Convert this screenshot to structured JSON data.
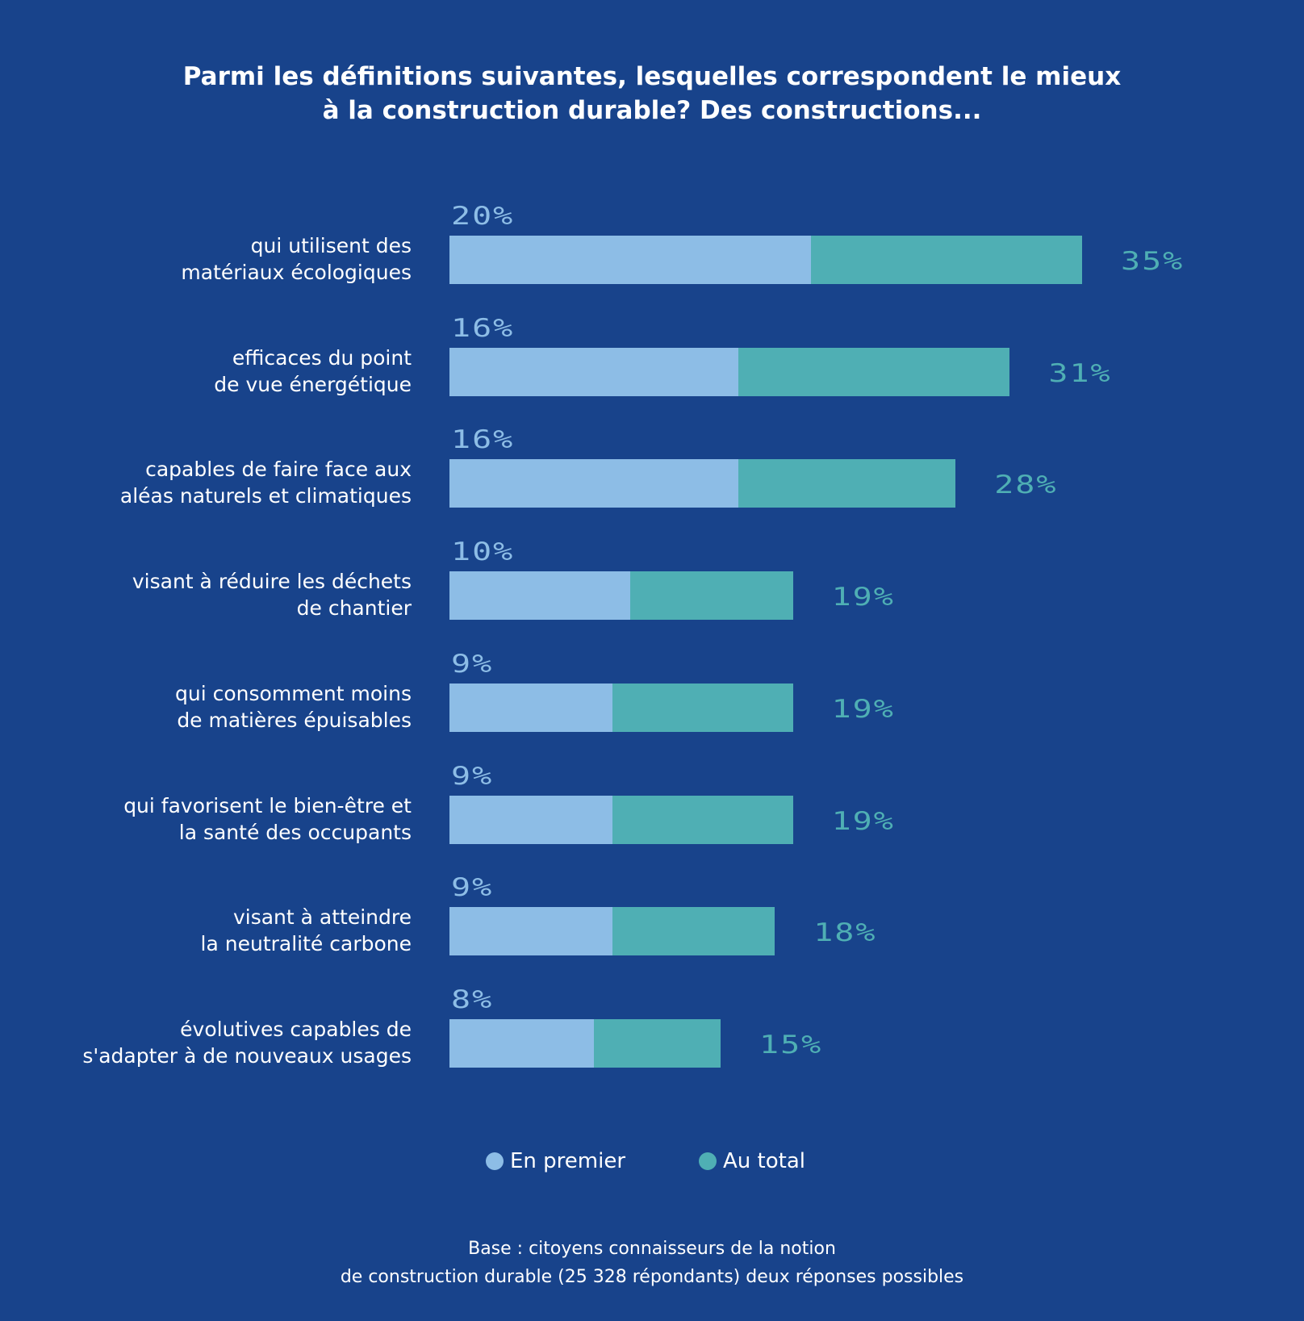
{
  "header": {
    "title_line1": "Parmi les définitions suivantes, lesquelles correspondent le mieux",
    "title_line2": "à la construction durable? Des constructions..."
  },
  "colors": {
    "background": "#18438b",
    "first": "#8dbde6",
    "total": "#4fafb4"
  },
  "chart_data": {
    "type": "bar",
    "orientation": "horizontal",
    "title": "Parmi les définitions suivantes, lesquelles correspondent le mieux à la construction durable? Des constructions...",
    "categories": [
      [
        "qui utilisent des",
        "matériaux écologiques"
      ],
      [
        "efficaces du point",
        "de vue énergétique"
      ],
      [
        "capables de faire face aux",
        "aléas naturels et climatiques"
      ],
      [
        "visant à réduire les déchets",
        "de chantier"
      ],
      [
        "qui consomment moins",
        "de matières épuisables"
      ],
      [
        "qui favorisent le bien-être et",
        "la santé des occupants"
      ],
      [
        "visant à atteindre",
        "la neutralité carbone"
      ],
      [
        "évolutives capables de",
        "s'adapter à de nouveaux usages"
      ]
    ],
    "series": [
      {
        "name": "En premier",
        "values": [
          20,
          16,
          16,
          10,
          9,
          9,
          9,
          8
        ],
        "labels": [
          "20%",
          "16%",
          "16%",
          "10%",
          "9%",
          "9%",
          "9%",
          "8%"
        ]
      },
      {
        "name": "Au total",
        "values": [
          35,
          31,
          28,
          19,
          19,
          19,
          18,
          15
        ],
        "labels": [
          "35%",
          "31%",
          "28%",
          "19%",
          "19%",
          "19%",
          "18%",
          "15%"
        ]
      }
    ],
    "xlim": [
      0,
      35
    ],
    "legend_position": "bottom",
    "grid": false
  },
  "legend": {
    "items": [
      "En premier",
      "Au total"
    ]
  },
  "footnote": {
    "line1": "Base : citoyens connaisseurs de la notion",
    "line2": "de construction durable (25 328 répondants) deux réponses possibles"
  }
}
